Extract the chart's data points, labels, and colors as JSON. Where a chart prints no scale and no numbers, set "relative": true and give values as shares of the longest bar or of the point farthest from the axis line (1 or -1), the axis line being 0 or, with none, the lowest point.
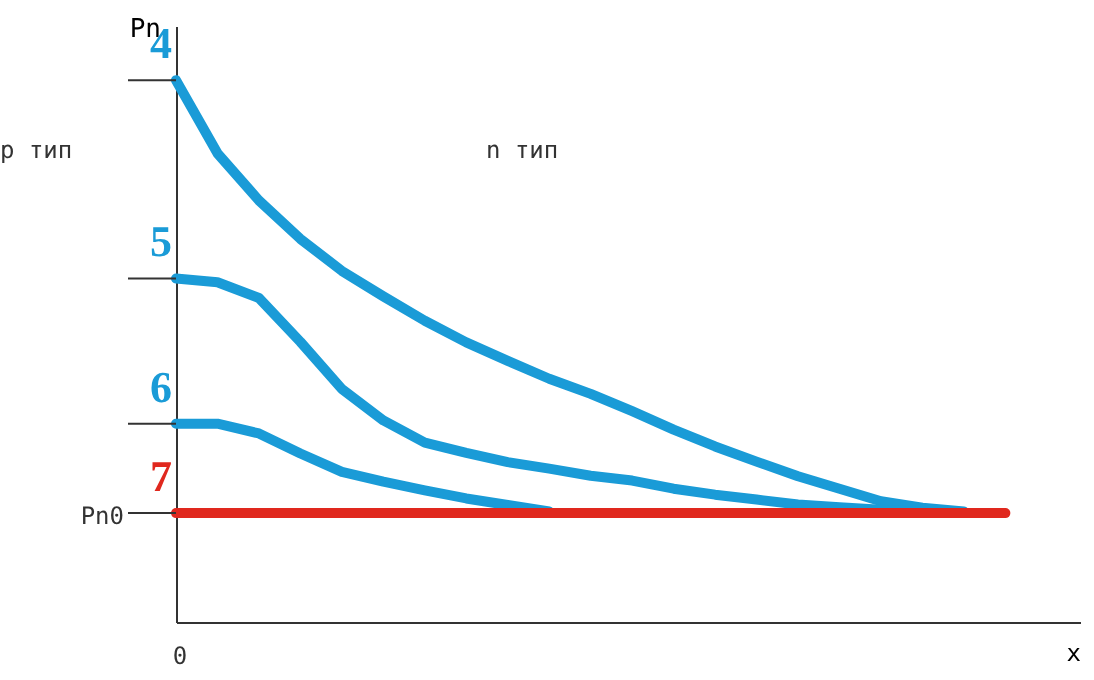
{
  "chart_data": {
    "type": "line",
    "relative": true,
    "xlabel": "x",
    "ylabel": "Pn",
    "line_style": "solid",
    "marker": "none",
    "annotations": [
      "p тип",
      "n тип",
      "0",
      "Pn0"
    ],
    "categories": [
      null,
      null,
      null,
      null,
      null,
      null,
      null,
      null,
      null,
      null,
      null,
      null,
      null,
      null,
      null,
      null,
      null,
      null,
      null,
      null,
      null
    ],
    "series": [
      {
        "name": "4",
        "color": "#1a9bd7",
        "values": [
          1.0,
          0.865,
          0.778,
          0.707,
          0.648,
          0.601,
          0.556,
          0.516,
          0.482,
          0.449,
          0.421,
          0.389,
          0.355,
          0.324,
          0.296,
          0.269,
          0.246,
          0.223,
          0.211,
          0.204,
          null
        ]
      },
      {
        "name": "5",
        "color": "#1a9bd7",
        "values": [
          0.634,
          0.627,
          0.598,
          0.517,
          0.43,
          0.372,
          0.331,
          0.312,
          0.295,
          0.283,
          0.27,
          0.261,
          0.246,
          0.235,
          0.226,
          0.217,
          0.212,
          0.207,
          0.203,
          null,
          null
        ]
      },
      {
        "name": "6",
        "color": "#1a9bd7",
        "values": [
          0.366,
          0.366,
          0.348,
          0.311,
          0.277,
          0.259,
          0.243,
          0.228,
          0.216,
          0.204,
          null,
          null,
          null,
          null,
          null,
          null,
          null,
          null,
          null,
          null,
          null
        ]
      },
      {
        "name": "7",
        "color": "#e0281e",
        "values": [
          0.201,
          0.201,
          0.201,
          0.201,
          0.201,
          0.201,
          0.201,
          0.201,
          0.201,
          0.201,
          0.201,
          0.201,
          0.201,
          0.201,
          0.201,
          0.201,
          0.201,
          0.201,
          0.201,
          0.201,
          0.201
        ]
      }
    ]
  }
}
